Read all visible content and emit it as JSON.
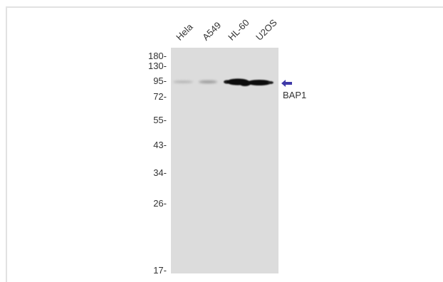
{
  "lanes": [
    "Hela",
    "A549",
    "HL-60",
    "U2OS"
  ],
  "markers": [
    "180-",
    "130-",
    "95-",
    "72-",
    "55-",
    "43-",
    "34-",
    "26-",
    "17-"
  ],
  "target": "BAP1",
  "colors": {
    "membrane": "#dcdcdc",
    "band": "#111111",
    "arrow": "#3f3aa8",
    "text": "#333333"
  },
  "icons": {
    "band_pointer": "left-arrow-icon"
  }
}
